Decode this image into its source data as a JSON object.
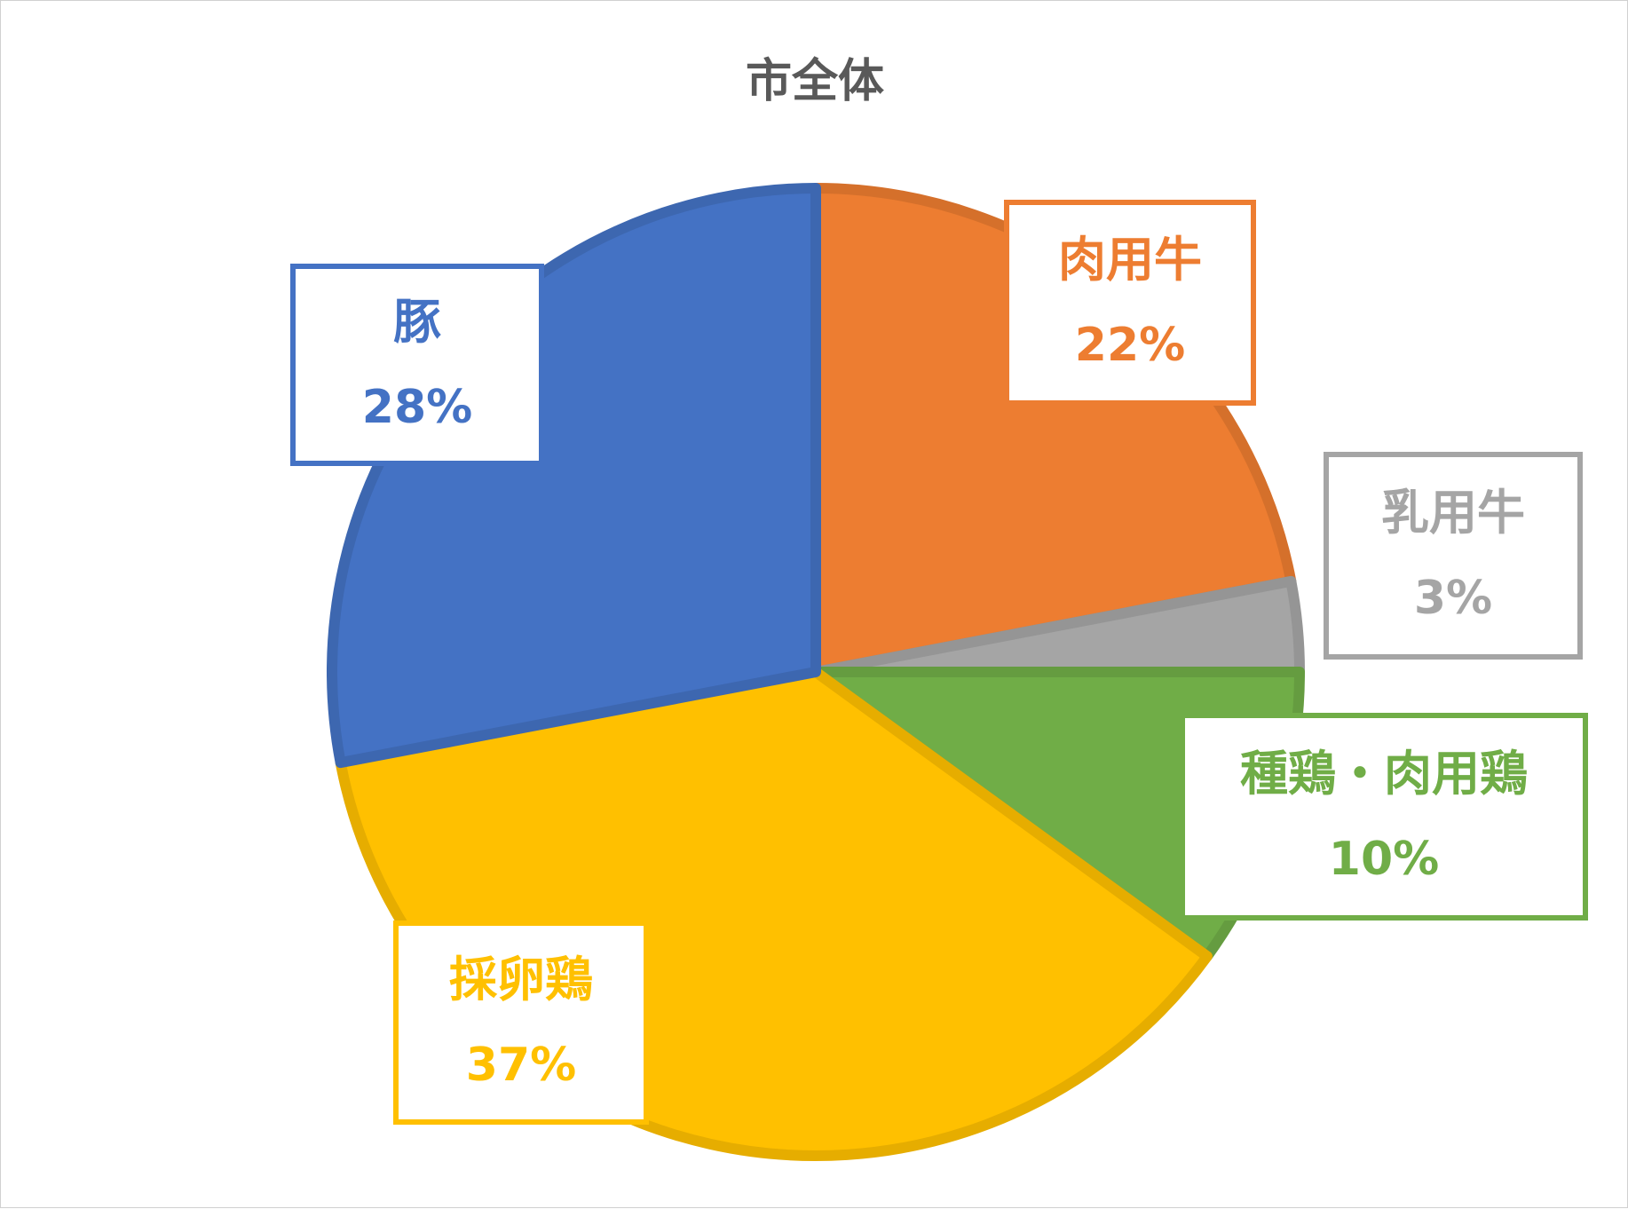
{
  "chart_data": {
    "type": "pie",
    "title": "市全体",
    "slices": [
      {
        "name": "肉用牛",
        "value": 22,
        "label": "22%",
        "color": "#ED7D31",
        "stroke": "#D5702B"
      },
      {
        "name": "乳用牛",
        "value": 3,
        "label": "3%",
        "color": "#A5A5A5",
        "stroke": "#959595"
      },
      {
        "name": "種鶏・肉用鶏",
        "value": 10,
        "label": "10%",
        "color": "#70AD47",
        "stroke": "#659C40"
      },
      {
        "name": "採卵鶏",
        "value": 37,
        "label": "37%",
        "color": "#FFC000",
        "stroke": "#E6AD00"
      },
      {
        "name": "豚",
        "value": 28,
        "label": "28%",
        "color": "#4472C4",
        "stroke": "#3D67B0"
      }
    ],
    "start_angle_deg": 0,
    "direction": "clockwise",
    "legend": "none",
    "data_labels": "boxed callouts"
  }
}
